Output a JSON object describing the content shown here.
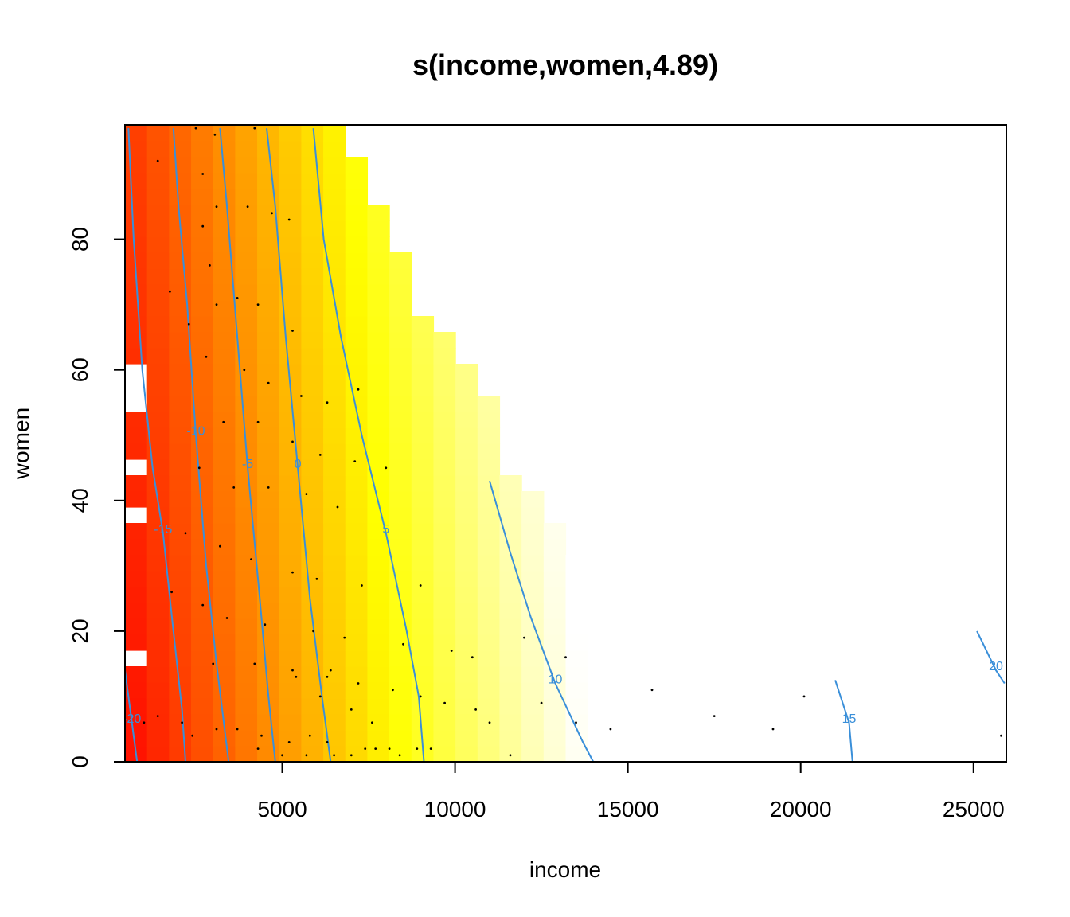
{
  "chart_data": {
    "type": "heatmap",
    "title": "s(income,women,4.89)",
    "xlabel": "income",
    "ylabel": "women",
    "xlim": [
      450,
      25950
    ],
    "ylim": [
      0,
      97.5
    ],
    "xticks": [
      5000,
      10000,
      15000,
      20000,
      25000
    ],
    "yticks": [
      0,
      20,
      40,
      60,
      80
    ],
    "colormap": "heat",
    "colors": {
      "low": "#ff0000",
      "mid": "#ffff00",
      "high": "#ffffff",
      "contour": "#3a8fd9",
      "frame": "#000000",
      "points": "#000000"
    },
    "contours": [
      {
        "level": -20,
        "label": "-20",
        "points": [
          [
            450,
            14
          ],
          [
            650,
            6
          ],
          [
            800,
            0
          ]
        ]
      },
      {
        "level": -15,
        "label": "-15",
        "points": [
          [
            550,
            97
          ],
          [
            700,
            80
          ],
          [
            950,
            60
          ],
          [
            1250,
            45
          ],
          [
            1550,
            35
          ],
          [
            1850,
            20
          ],
          [
            2100,
            8
          ],
          [
            2200,
            0
          ]
        ]
      },
      {
        "level": -10,
        "label": "-10",
        "points": [
          [
            1850,
            97
          ],
          [
            2000,
            85
          ],
          [
            2250,
            70
          ],
          [
            2500,
            50
          ],
          [
            2800,
            30
          ],
          [
            3100,
            15
          ],
          [
            3450,
            0
          ]
        ]
      },
      {
        "level": -5,
        "label": "-5",
        "points": [
          [
            3200,
            97
          ],
          [
            3400,
            85
          ],
          [
            3700,
            65
          ],
          [
            4000,
            45
          ],
          [
            4350,
            25
          ],
          [
            4600,
            10
          ],
          [
            4800,
            0
          ]
        ]
      },
      {
        "level": 0,
        "label": "0",
        "points": [
          [
            4550,
            97
          ],
          [
            4800,
            85
          ],
          [
            5100,
            65
          ],
          [
            5450,
            45
          ],
          [
            5800,
            25
          ],
          [
            6150,
            10
          ],
          [
            6400,
            0
          ]
        ]
      },
      {
        "level": 5,
        "label": "5",
        "points": [
          [
            5900,
            97
          ],
          [
            6200,
            80
          ],
          [
            6700,
            65
          ],
          [
            7300,
            50
          ],
          [
            8000,
            35
          ],
          [
            8600,
            20
          ],
          [
            8950,
            10
          ],
          [
            9100,
            0
          ]
        ]
      },
      {
        "level": 10,
        "label": "10",
        "points": [
          [
            11000,
            43
          ],
          [
            11600,
            32
          ],
          [
            12200,
            22
          ],
          [
            12900,
            12
          ],
          [
            13700,
            3
          ],
          [
            14000,
            0
          ]
        ]
      },
      {
        "level": 15,
        "label": "15",
        "points": [
          [
            21000,
            12.5
          ],
          [
            21400,
            6
          ],
          [
            21500,
            0
          ]
        ]
      },
      {
        "level": 20,
        "label": "20",
        "points": [
          [
            25100,
            20
          ],
          [
            25650,
            14
          ],
          [
            25900,
            12
          ]
        ]
      }
    ],
    "points": [
      [
        1400,
        92
      ],
      [
        2500,
        97
      ],
      [
        3050,
        96
      ],
      [
        4200,
        97
      ],
      [
        2700,
        90
      ],
      [
        3100,
        85
      ],
      [
        4000,
        85
      ],
      [
        4700,
        84
      ],
      [
        5200,
        83
      ],
      [
        2700,
        82
      ],
      [
        2900,
        76
      ],
      [
        1750,
        72
      ],
      [
        2300,
        67
      ],
      [
        3100,
        70
      ],
      [
        3700,
        71
      ],
      [
        4300,
        70
      ],
      [
        5300,
        66
      ],
      [
        2800,
        62
      ],
      [
        3900,
        60
      ],
      [
        4600,
        58
      ],
      [
        5550,
        56
      ],
      [
        6300,
        55
      ],
      [
        7200,
        57
      ],
      [
        3300,
        52
      ],
      [
        4300,
        52
      ],
      [
        5300,
        49
      ],
      [
        6100,
        47
      ],
      [
        7100,
        46
      ],
      [
        8000,
        45
      ],
      [
        2600,
        45
      ],
      [
        3600,
        42
      ],
      [
        4600,
        42
      ],
      [
        5700,
        41
      ],
      [
        6600,
        39
      ],
      [
        2200,
        35
      ],
      [
        3200,
        33
      ],
      [
        4100,
        31
      ],
      [
        5300,
        29
      ],
      [
        6000,
        28
      ],
      [
        7300,
        27
      ],
      [
        9000,
        27
      ],
      [
        1800,
        26
      ],
      [
        2700,
        24
      ],
      [
        3400,
        22
      ],
      [
        4500,
        21
      ],
      [
        5900,
        20
      ],
      [
        6800,
        19
      ],
      [
        8500,
        18
      ],
      [
        9900,
        17
      ],
      [
        10500,
        16
      ],
      [
        3000,
        15
      ],
      [
        4200,
        15
      ],
      [
        5300,
        14
      ],
      [
        6300,
        13
      ],
      [
        7200,
        12
      ],
      [
        8200,
        11
      ],
      [
        9000,
        10
      ],
      [
        9700,
        9
      ],
      [
        10600,
        8
      ],
      [
        1400,
        7
      ],
      [
        2100,
        6
      ],
      [
        3100,
        5
      ],
      [
        3700,
        5
      ],
      [
        4400,
        4
      ],
      [
        5200,
        3
      ],
      [
        5800,
        4
      ],
      [
        6300,
        3
      ],
      [
        7400,
        2
      ],
      [
        8100,
        2
      ],
      [
        8900,
        2
      ],
      [
        1000,
        6
      ],
      [
        2400,
        4
      ],
      [
        4300,
        2
      ],
      [
        5000,
        1
      ],
      [
        5700,
        1
      ],
      [
        6500,
        1
      ],
      [
        7000,
        1
      ],
      [
        7700,
        2
      ],
      [
        8400,
        1
      ],
      [
        9300,
        2
      ],
      [
        11000,
        6
      ],
      [
        12500,
        9
      ],
      [
        13500,
        6
      ],
      [
        14500,
        5
      ],
      [
        17500,
        7
      ],
      [
        19200,
        5
      ],
      [
        20100,
        10
      ],
      [
        25800,
        4
      ],
      [
        5400,
        13
      ],
      [
        6100,
        10
      ],
      [
        6400,
        14
      ],
      [
        7000,
        8
      ],
      [
        7600,
        6
      ],
      [
        11600,
        1
      ],
      [
        12000,
        19
      ],
      [
        13200,
        16
      ],
      [
        15700,
        11
      ]
    ]
  }
}
